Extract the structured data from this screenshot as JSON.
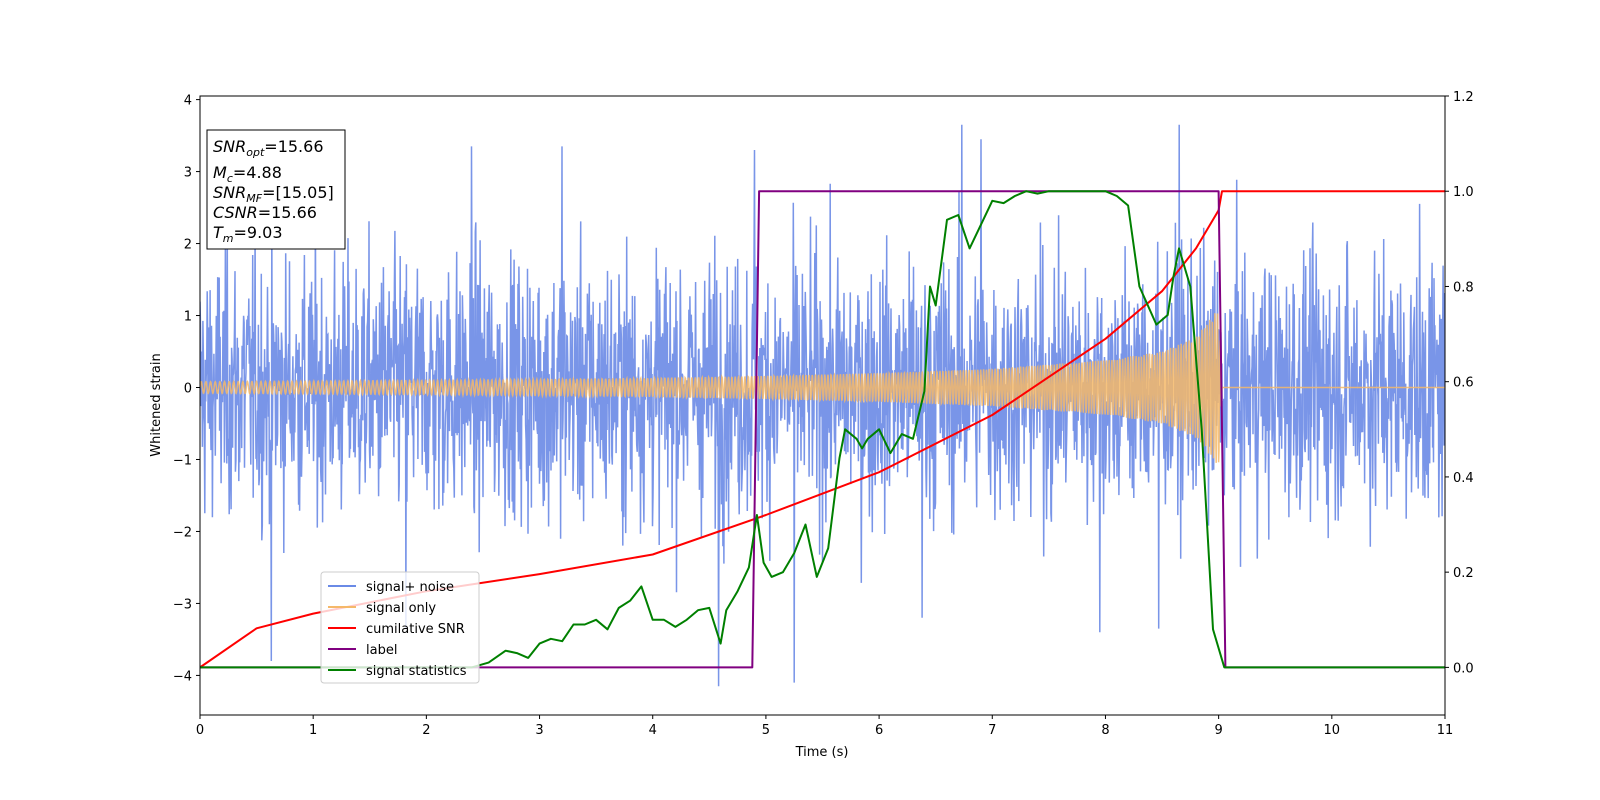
{
  "chart_data": {
    "type": "line",
    "xlabel": "Time (s)",
    "ylabel_left": "Whitened strain",
    "ylabel_right": "",
    "xlim": [
      0,
      11
    ],
    "ylim_left": [
      -4.55,
      4.05
    ],
    "ylim_right": [
      -0.1,
      1.2
    ],
    "xticks": [
      "0",
      "1",
      "2",
      "3",
      "4",
      "5",
      "6",
      "7",
      "8",
      "9",
      "10",
      "11"
    ],
    "yticks_left": [
      "−4",
      "−3",
      "−2",
      "−1",
      "0",
      "1",
      "2",
      "3",
      "4"
    ],
    "yticks_right": [
      "0.0",
      "0.2",
      "0.4",
      "0.6",
      "0.8",
      "1.0",
      "1.2"
    ],
    "grid": false,
    "legend_position": "bottom-left",
    "info_box": {
      "lines": [
        {
          "name": "SNR",
          "sub": "opt",
          "value": "=15.66"
        },
        {
          "name": "M",
          "sub": "c",
          "value": "=4.88"
        },
        {
          "name": "SNR",
          "sub": "MF",
          "value": "=[15.05]"
        },
        {
          "name": "CSNR",
          "sub": "",
          "value": "=15.66"
        },
        {
          "name": "T",
          "sub": "m",
          "value": "=9.03"
        }
      ]
    },
    "series": [
      {
        "name": "signal+ noise",
        "axis": "left",
        "color": "#6a8ae6",
        "description_values": {
          "noise_std": 0.9,
          "min": -4.15,
          "max": 3.65,
          "deep_spikes": [
            [
              0.63,
              -3.8
            ],
            [
              4.58,
              -4.15
            ],
            [
              5.25,
              -4.1
            ],
            [
              1.82,
              -3.35
            ],
            [
              6.38,
              -3.2
            ],
            [
              7.95,
              -3.4
            ],
            [
              8.47,
              -3.35
            ]
          ],
          "high_spikes": [
            [
              6.73,
              3.65
            ],
            [
              8.65,
              3.65
            ],
            [
              6.9,
              3.45
            ],
            [
              3.2,
              3.35
            ],
            [
              2.4,
              3.35
            ],
            [
              4.9,
              3.3
            ]
          ]
        }
      },
      {
        "name": "signal only",
        "axis": "left",
        "color": "#f5b869",
        "envelope": {
          "t": [
            0,
            2,
            4,
            5,
            6,
            7,
            8,
            8.5,
            8.8,
            9.0,
            9.03
          ],
          "amplitude": [
            0.08,
            0.1,
            0.13,
            0.16,
            0.2,
            0.26,
            0.38,
            0.5,
            0.7,
            1.1,
            0.0
          ]
        }
      },
      {
        "name": "cumilative SNR",
        "axis": "right",
        "color": "#ff0000",
        "x": [
          0,
          0.5,
          1,
          2,
          3,
          4,
          5,
          6,
          7,
          8,
          8.5,
          8.8,
          9.0,
          9.03,
          11
        ],
        "y": [
          0.0,
          0.082,
          0.113,
          0.16,
          0.196,
          0.237,
          0.32,
          0.41,
          0.53,
          0.69,
          0.79,
          0.88,
          0.96,
          1.0,
          1.0
        ]
      },
      {
        "name": "label",
        "axis": "right",
        "color": "#800080",
        "x": [
          0,
          4.88,
          4.94,
          9.0,
          9.06,
          11
        ],
        "y": [
          0,
          0,
          1,
          1,
          0,
          0
        ]
      },
      {
        "name": "signal statistics",
        "axis": "right",
        "color": "#008000",
        "x": [
          0,
          2.4,
          2.55,
          2.7,
          2.8,
          2.9,
          3.0,
          3.1,
          3.2,
          3.3,
          3.4,
          3.5,
          3.6,
          3.7,
          3.8,
          3.9,
          4.0,
          4.1,
          4.2,
          4.3,
          4.4,
          4.5,
          4.6,
          4.65,
          4.75,
          4.85,
          4.92,
          4.98,
          5.05,
          5.15,
          5.25,
          5.35,
          5.45,
          5.55,
          5.65,
          5.7,
          5.8,
          5.85,
          5.9,
          6.0,
          6.1,
          6.2,
          6.3,
          6.4,
          6.45,
          6.5,
          6.6,
          6.7,
          6.8,
          6.9,
          7.0,
          7.1,
          7.2,
          7.3,
          7.4,
          7.5,
          7.6,
          7.8,
          8.0,
          8.1,
          8.2,
          8.3,
          8.45,
          8.55,
          8.6,
          8.65,
          8.75,
          8.85,
          8.95,
          9.05,
          11
        ],
        "y": [
          0.0,
          0.0,
          0.01,
          0.035,
          0.03,
          0.02,
          0.05,
          0.06,
          0.055,
          0.09,
          0.09,
          0.1,
          0.08,
          0.125,
          0.14,
          0.17,
          0.1,
          0.1,
          0.085,
          0.1,
          0.12,
          0.125,
          0.05,
          0.12,
          0.16,
          0.21,
          0.32,
          0.22,
          0.19,
          0.2,
          0.24,
          0.3,
          0.19,
          0.25,
          0.44,
          0.5,
          0.48,
          0.46,
          0.48,
          0.5,
          0.45,
          0.49,
          0.48,
          0.58,
          0.8,
          0.76,
          0.94,
          0.95,
          0.88,
          0.93,
          0.98,
          0.975,
          0.99,
          1.0,
          0.995,
          1.0,
          1.0,
          1.0,
          1.0,
          0.99,
          0.97,
          0.8,
          0.72,
          0.74,
          0.82,
          0.88,
          0.8,
          0.5,
          0.08,
          0.0,
          0.0
        ]
      }
    ]
  }
}
